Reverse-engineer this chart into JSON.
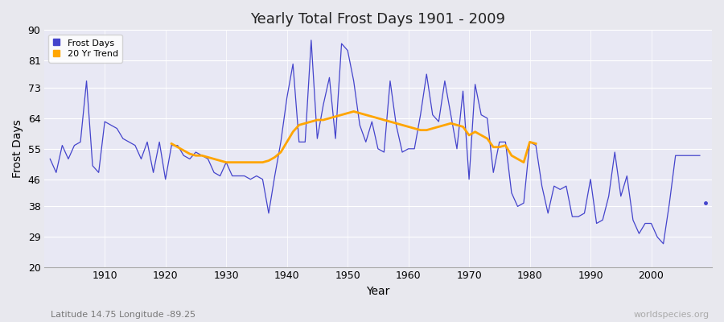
{
  "title": "Yearly Total Frost Days 1901 - 2009",
  "xlabel": "Year",
  "ylabel": "Frost Days",
  "subtitle_lat": "Latitude 14.75 Longitude -89.25",
  "watermark": "worldspecies.org",
  "ylim": [
    20,
    90
  ],
  "yticks": [
    20,
    29,
    38,
    46,
    55,
    64,
    73,
    81,
    90
  ],
  "xticks": [
    1910,
    1920,
    1930,
    1940,
    1950,
    1960,
    1970,
    1980,
    1990,
    2000
  ],
  "line_color": "#4444cc",
  "trend_color": "#FFA500",
  "fig_bg_color": "#e8e8ee",
  "plot_bg_color": "#e8e8f4",
  "years": [
    1901,
    1902,
    1903,
    1904,
    1905,
    1906,
    1907,
    1908,
    1909,
    1910,
    1911,
    1912,
    1913,
    1914,
    1915,
    1916,
    1917,
    1918,
    1919,
    1920,
    1921,
    1922,
    1923,
    1924,
    1925,
    1926,
    1927,
    1928,
    1929,
    1930,
    1931,
    1932,
    1933,
    1934,
    1935,
    1936,
    1937,
    1938,
    1939,
    1940,
    1941,
    1942,
    1943,
    1944,
    1945,
    1946,
    1947,
    1948,
    1949,
    1950,
    1951,
    1952,
    1953,
    1954,
    1955,
    1956,
    1957,
    1958,
    1959,
    1960,
    1961,
    1962,
    1963,
    1964,
    1965,
    1966,
    1967,
    1968,
    1969,
    1970,
    1971,
    1972,
    1973,
    1974,
    1975,
    1976,
    1977,
    1978,
    1979,
    1980,
    1981,
    1982,
    1983,
    1984,
    1985,
    1986,
    1987,
    1988,
    1989,
    1990,
    1991,
    1992,
    1993,
    1994,
    1995,
    1996,
    1997,
    1998,
    1999,
    2000,
    2001,
    2002,
    2003,
    2004,
    2005,
    2006,
    2007,
    2008
  ],
  "frost_days": [
    52,
    48,
    56,
    52,
    56,
    57,
    75,
    50,
    48,
    63,
    62,
    61,
    58,
    57,
    56,
    52,
    57,
    48,
    57,
    46,
    56,
    56,
    53,
    52,
    54,
    53,
    52,
    48,
    47,
    51,
    47,
    47,
    47,
    46,
    47,
    46,
    36,
    47,
    57,
    70,
    80,
    57,
    57,
    87,
    58,
    68,
    76,
    58,
    86,
    84,
    75,
    62,
    57,
    63,
    55,
    54,
    75,
    62,
    54,
    55,
    55,
    65,
    77,
    65,
    63,
    75,
    65,
    55,
    72,
    46,
    74,
    65,
    64,
    48,
    57,
    57,
    42,
    38,
    39,
    57,
    56,
    44,
    36,
    44,
    43,
    44,
    35,
    35,
    36,
    46,
    33,
    34,
    41,
    54,
    41,
    47,
    34,
    30,
    33,
    33,
    29,
    27,
    39,
    53,
    53,
    53,
    53,
    53
  ],
  "isolated_year": 2009,
  "isolated_value": 39,
  "trend_years": [
    1921,
    1922,
    1923,
    1924,
    1925,
    1926,
    1927,
    1928,
    1929,
    1930,
    1931,
    1932,
    1933,
    1934,
    1935,
    1936,
    1937,
    1938,
    1939,
    1940,
    1941,
    1942,
    1943,
    1944,
    1945,
    1946,
    1947,
    1948,
    1949,
    1950,
    1951,
    1952,
    1953,
    1954,
    1955,
    1956,
    1957,
    1958,
    1959,
    1960,
    1961,
    1962,
    1963,
    1964,
    1965,
    1966,
    1967,
    1968,
    1969,
    1970,
    1971,
    1972,
    1973,
    1974,
    1975,
    1976,
    1977,
    1978,
    1979,
    1980,
    1981
  ],
  "trend_values": [
    56.5,
    55.5,
    54.5,
    53.5,
    53.0,
    53.0,
    52.5,
    52.0,
    51.5,
    51.0,
    51.0,
    51.0,
    51.0,
    51.0,
    51.0,
    51.0,
    51.5,
    52.5,
    54.0,
    57.0,
    60.0,
    62.0,
    62.5,
    63.0,
    63.5,
    63.5,
    64.0,
    64.5,
    65.0,
    65.5,
    66.0,
    65.5,
    65.0,
    64.5,
    64.0,
    63.5,
    63.0,
    62.5,
    62.0,
    61.5,
    61.0,
    60.5,
    60.5,
    61.0,
    61.5,
    62.0,
    62.5,
    62.0,
    61.5,
    59.0,
    60.0,
    59.0,
    58.0,
    55.5,
    55.5,
    56.0,
    53.0,
    52.0,
    51.0,
    57.0,
    56.5
  ]
}
